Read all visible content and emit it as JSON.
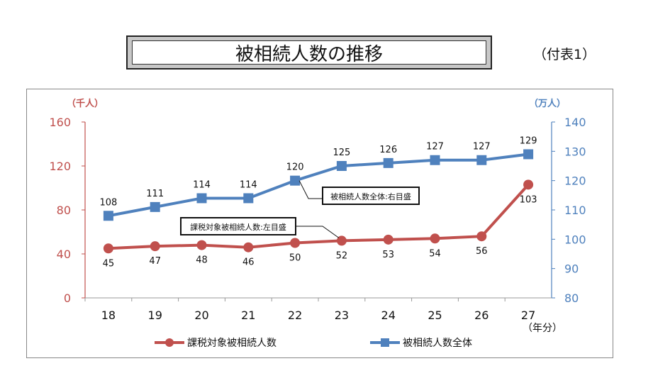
{
  "title": "被相続人数の推移",
  "appendix_label": "（付表1）",
  "chart_data": {
    "type": "line",
    "categories": [
      "18",
      "19",
      "20",
      "21",
      "22",
      "23",
      "24",
      "25",
      "26",
      "27"
    ],
    "xlabel": "（年分）",
    "left_axis": {
      "unit": "（千人）",
      "ylim": [
        0,
        160
      ],
      "ticks": [
        0,
        40,
        80,
        120,
        160
      ],
      "color": "#c0504d"
    },
    "right_axis": {
      "unit": "（万人）",
      "ylim": [
        80,
        140
      ],
      "ticks": [
        80,
        90,
        100,
        110,
        120,
        130,
        140
      ],
      "color": "#4f81bd"
    },
    "series": [
      {
        "name": "課税対象被相続人数",
        "axis": "left",
        "marker": "circle",
        "color": "#c0504d",
        "values": [
          45,
          47,
          48,
          46,
          50,
          52,
          53,
          54,
          56,
          103
        ],
        "callout": "課税対象被相続人数:左目盛"
      },
      {
        "name": "被相続人数全体",
        "axis": "right",
        "marker": "square",
        "color": "#4f81bd",
        "values": [
          108,
          111,
          114,
          114,
          120,
          125,
          126,
          127,
          127,
          129
        ],
        "callout": "被相続人数全体:右目盛"
      }
    ],
    "legend": "bottom",
    "grid": false
  }
}
